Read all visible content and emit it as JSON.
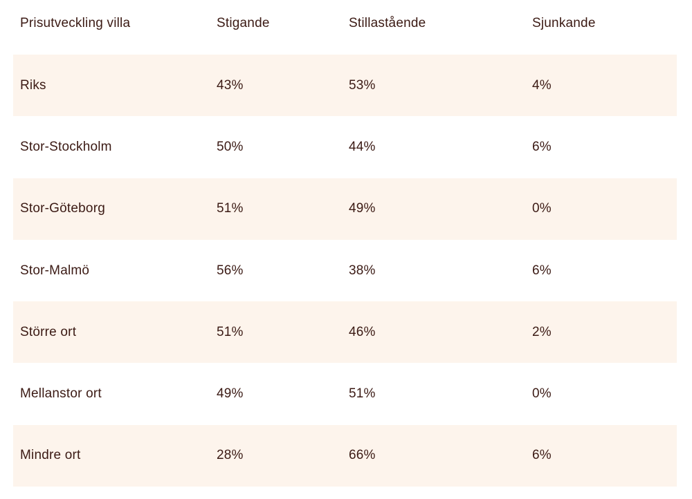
{
  "table": {
    "headers": [
      "Prisutveckling villa",
      "Stigande",
      "Stillastående",
      "Sjunkande"
    ],
    "rows": [
      [
        "Riks",
        "43%",
        "53%",
        "4%"
      ],
      [
        "Stor-Stockholm",
        "50%",
        "44%",
        "6%"
      ],
      [
        "Stor-Göteborg",
        "51%",
        "49%",
        "0%"
      ],
      [
        "Stor-Malmö",
        "56%",
        "38%",
        "6%"
      ],
      [
        "Större ort",
        "51%",
        "46%",
        "2%"
      ],
      [
        "Mellanstor ort",
        "49%",
        "51%",
        "0%"
      ],
      [
        "Mindre ort",
        "28%",
        "66%",
        "6%"
      ]
    ]
  },
  "colors": {
    "text": "#3b1a14",
    "row_shade": "#fdf4ec",
    "background": "#ffffff"
  }
}
